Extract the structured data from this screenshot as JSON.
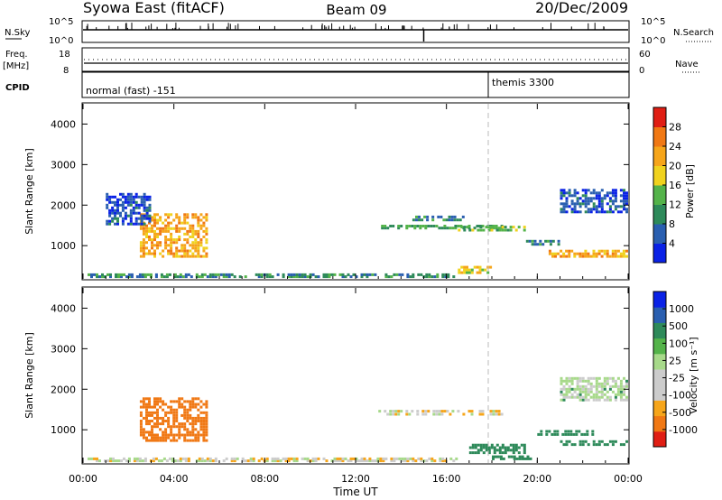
{
  "header": {
    "radar": "Syowa East (fitACF)",
    "beam": "Beam 09",
    "date": "20/Dec/2009"
  },
  "strips": {
    "nsky_label": "N.Sky",
    "nsky_ticks": [
      "10^5",
      "10^0"
    ],
    "nsearch_label": "N.Search",
    "nsearch_ticks": [
      "10^5",
      "10^0"
    ],
    "freq_label_1": "Freq.",
    "freq_label_2": "[MHz]",
    "freq_ticks": [
      "18",
      "8"
    ],
    "nave_label": "Nave",
    "nave_ticks": [
      "60",
      "0"
    ],
    "cpid_label": "CPID",
    "cpid_modes": [
      "normal (fast) -151",
      "themis 3300"
    ]
  },
  "time_axis": {
    "label": "Time UT",
    "ticks": [
      "00:00",
      "04:00",
      "08:00",
      "12:00",
      "16:00",
      "20:00",
      "00:00"
    ]
  },
  "colors": {
    "power_scale": [
      "#0a22e6",
      "#2a5fb0",
      "#2e8a5a",
      "#54b34a",
      "#f0d21e",
      "#f6a51a",
      "#f07814",
      "#e01e14"
    ],
    "velocity_scale": [
      "#e01e14",
      "#f07814",
      "#f6a51a",
      "#cccccc",
      "#cccccc",
      "#a7d98a",
      "#54b34a",
      "#2e8a5a",
      "#2a5fb0",
      "#0a22e6"
    ]
  },
  "chart_data": [
    {
      "type": "heatmap",
      "title": "",
      "xlabel": "Time UT",
      "ylabel": "Slant Range [km]",
      "ylim": [
        180,
        4500
      ],
      "yticks": [
        "1000",
        "2000",
        "3000",
        "4000"
      ],
      "colorbar": {
        "label": "Power [dB]",
        "ticks": [
          "4",
          "8",
          "12",
          "16",
          "20",
          "24",
          "28"
        ],
        "range": [
          0,
          32
        ]
      },
      "regions": [
        {
          "t": [
            2.5,
            5.5
          ],
          "r": [
            700,
            1800
          ],
          "value": 22
        },
        {
          "t": [
            0.2,
            16.5
          ],
          "r": [
            200,
            300
          ],
          "value": 10
        },
        {
          "t": [
            1.0,
            3.0
          ],
          "r": [
            1500,
            2300
          ],
          "value": 5
        },
        {
          "t": [
            13.0,
            18.5
          ],
          "r": [
            1400,
            1500
          ],
          "value": 12
        },
        {
          "t": [
            14.5,
            16.8
          ],
          "r": [
            1600,
            1750
          ],
          "value": 10
        },
        {
          "t": [
            16.5,
            19.5
          ],
          "r": [
            1350,
            1500
          ],
          "value": 14
        },
        {
          "t": [
            16.5,
            18.0
          ],
          "r": [
            300,
            500
          ],
          "value": 18
        },
        {
          "t": [
            19.5,
            21.0
          ],
          "r": [
            1000,
            1150
          ],
          "value": 9
        },
        {
          "t": [
            20.5,
            24.0
          ],
          "r": [
            700,
            900
          ],
          "value": 22
        },
        {
          "t": [
            21.0,
            24.0
          ],
          "r": [
            1800,
            2400
          ],
          "value": 5
        }
      ]
    },
    {
      "type": "heatmap",
      "title": "",
      "xlabel": "Time UT",
      "ylabel": "Slant Range [km]",
      "ylim": [
        180,
        4500
      ],
      "yticks": [
        "1000",
        "2000",
        "3000",
        "4000"
      ],
      "colorbar": {
        "label": "Velocity [m s⁻¹]",
        "ticks": [
          "1000",
          "500",
          "100",
          "25",
          "-25",
          "-100",
          "-500",
          "-1000"
        ],
        "range": [
          -1000,
          1000
        ]
      },
      "regions": [
        {
          "t": [
            2.5,
            5.5
          ],
          "r": [
            700,
            1800
          ],
          "value": -300
        },
        {
          "t": [
            0.2,
            16.5
          ],
          "r": [
            200,
            300
          ],
          "value": 0
        },
        {
          "t": [
            13.0,
            18.5
          ],
          "r": [
            1350,
            1500
          ],
          "value": 0
        },
        {
          "t": [
            17.0,
            19.5
          ],
          "r": [
            400,
            650
          ],
          "value": 250
        },
        {
          "t": [
            18.0,
            20.0
          ],
          "r": [
            250,
            350
          ],
          "value": 150
        },
        {
          "t": [
            20.0,
            22.5
          ],
          "r": [
            850,
            1000
          ],
          "value": 250
        },
        {
          "t": [
            21.0,
            24.0
          ],
          "r": [
            600,
            750
          ],
          "value": 300
        },
        {
          "t": [
            21.0,
            24.0
          ],
          "r": [
            1700,
            2300
          ],
          "value": 50
        }
      ]
    }
  ]
}
